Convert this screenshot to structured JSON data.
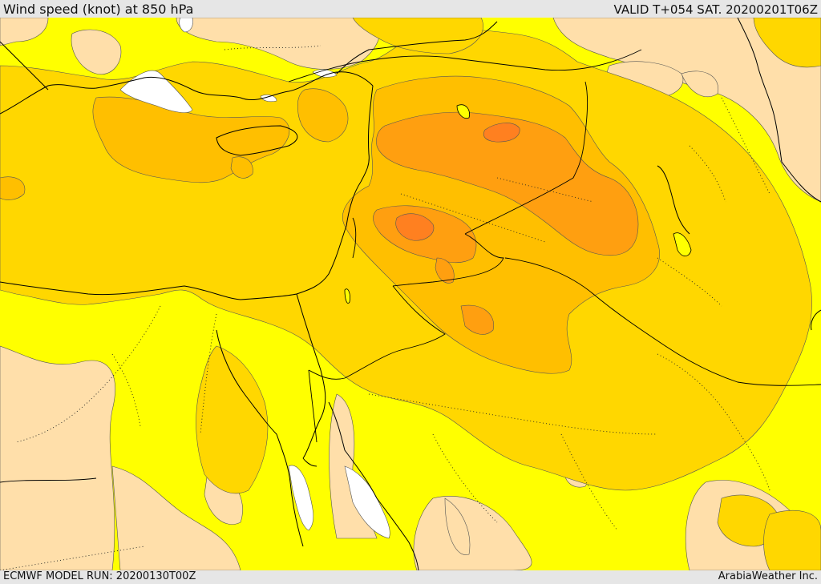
{
  "header": {
    "title": "Wind speed (knot) at 850 hPa",
    "valid_time": "VALID T+054 SAT. 20200201T06Z"
  },
  "footer": {
    "model_run": "ECMWF MODEL RUN: 20200130T00Z",
    "credit": "ArabiaWeather Inc."
  },
  "map": {
    "field": "wind speed",
    "palette": {
      "none": "#ffffff",
      "light": "#ffdfaa",
      "yellow": "#ffff00",
      "gold": "#ffd700",
      "amber": "#ffbf00",
      "orange": "#ff9f10",
      "deep_orange": "#ff8020"
    }
  }
}
